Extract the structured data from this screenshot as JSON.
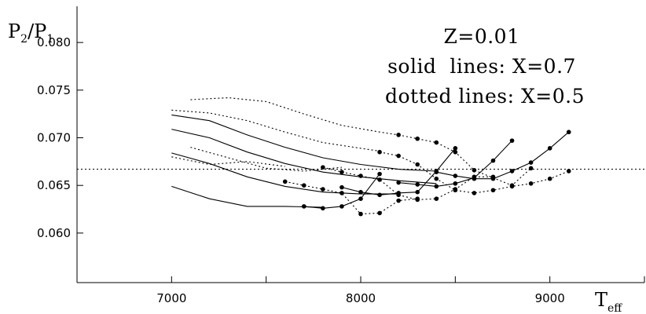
{
  "chart_data": {
    "type": "line",
    "xlabel_main": "T",
    "xlabel_sub": "eff",
    "ylabel_p2": "P",
    "ylabel_p2_sub": "2",
    "ylabel_slash": "/P",
    "ylabel_p1_sub": "1",
    "xlim": [
      6500,
      9500
    ],
    "ylim": [
      0.0548,
      0.0838
    ],
    "x_ticks": [
      7000,
      8000,
      9000
    ],
    "x_minor_ticks": [
      6500,
      7500,
      8500,
      9500
    ],
    "y_ticks": [
      0.06,
      0.065,
      0.07,
      0.075,
      0.08
    ],
    "y_tick_labels": [
      "0.060",
      "0.065",
      "0.070",
      "0.075",
      "0.080"
    ],
    "x_tick_labels": [
      "7000",
      "8000",
      "9000"
    ],
    "reference_line_y": 0.0667,
    "annotations": [
      "Z=0.01",
      "solid  lines: X=0.7",
      "dotted lines: X=0.5"
    ],
    "solid_curves": [
      [
        [
          7000,
          0.0724
        ],
        [
          7200,
          0.0718
        ],
        [
          7400,
          0.0703
        ],
        [
          7600,
          0.069
        ],
        [
          7800,
          0.0679
        ],
        [
          8000,
          0.0672
        ],
        [
          8200,
          0.0667
        ],
        [
          8400,
          0.0665
        ]
      ],
      [
        [
          7000,
          0.0709
        ],
        [
          7200,
          0.07
        ],
        [
          7400,
          0.0685
        ],
        [
          7600,
          0.0673
        ],
        [
          7800,
          0.0664
        ],
        [
          8000,
          0.0659
        ],
        [
          8200,
          0.0655
        ],
        [
          8400,
          0.0652
        ]
      ],
      [
        [
          7000,
          0.0684
        ],
        [
          7200,
          0.0673
        ],
        [
          7400,
          0.0659
        ],
        [
          7600,
          0.0649
        ],
        [
          7800,
          0.0643
        ],
        [
          8000,
          0.0641
        ],
        [
          8200,
          0.0641
        ]
      ],
      [
        [
          7000,
          0.0649
        ],
        [
          7200,
          0.0636
        ],
        [
          7400,
          0.0628
        ],
        [
          7600,
          0.0628
        ],
        [
          7800,
          0.0627
        ]
      ]
    ],
    "dotted_curves": [
      [
        [
          7100,
          0.074
        ],
        [
          7300,
          0.0742
        ],
        [
          7500,
          0.0738
        ],
        [
          7700,
          0.0725
        ],
        [
          7900,
          0.0713
        ],
        [
          8100,
          0.0706
        ],
        [
          8200,
          0.0703
        ]
      ],
      [
        [
          7000,
          0.0729
        ],
        [
          7200,
          0.0726
        ],
        [
          7400,
          0.0718
        ],
        [
          7600,
          0.0706
        ],
        [
          7800,
          0.0695
        ],
        [
          8000,
          0.0689
        ],
        [
          8100,
          0.0686
        ]
      ],
      [
        [
          7000,
          0.068
        ],
        [
          7200,
          0.0672
        ],
        [
          7400,
          0.0675
        ],
        [
          7600,
          0.067
        ]
      ],
      [
        [
          7100,
          0.069
        ],
        [
          7300,
          0.0679
        ],
        [
          7500,
          0.0668
        ],
        [
          7700,
          0.0665
        ],
        [
          7900,
          0.0669
        ]
      ]
    ],
    "solid_sequences": [
      [
        [
          7700,
          0.0628
        ],
        [
          7800,
          0.0626
        ],
        [
          7900,
          0.0628
        ],
        [
          8000,
          0.0636
        ],
        [
          8100,
          0.0662
        ]
      ],
      [
        [
          7900,
          0.0648
        ],
        [
          8000,
          0.0643
        ],
        [
          8100,
          0.064
        ],
        [
          8200,
          0.0642
        ],
        [
          8300,
          0.0643
        ],
        [
          8400,
          0.0665
        ],
        [
          8500,
          0.0689
        ]
      ],
      [
        [
          8200,
          0.0653
        ],
        [
          8300,
          0.0651
        ],
        [
          8400,
          0.0649
        ],
        [
          8500,
          0.0652
        ],
        [
          8600,
          0.0658
        ],
        [
          8700,
          0.0676
        ],
        [
          8800,
          0.0697
        ]
      ],
      [
        [
          8400,
          0.0664
        ],
        [
          8500,
          0.066
        ],
        [
          8600,
          0.0657
        ],
        [
          8700,
          0.0657
        ],
        [
          8800,
          0.0665
        ],
        [
          8900,
          0.0674
        ],
        [
          9000,
          0.0689
        ],
        [
          9100,
          0.0706
        ]
      ]
    ],
    "dotted_sequences": [
      [
        [
          7600,
          0.0654
        ],
        [
          7700,
          0.065
        ],
        [
          7800,
          0.0646
        ],
        [
          7900,
          0.0642
        ],
        [
          8000,
          0.062
        ],
        [
          8100,
          0.0621
        ],
        [
          8200,
          0.0634
        ],
        [
          8300,
          0.0636
        ]
      ],
      [
        [
          7800,
          0.0669
        ],
        [
          7900,
          0.0664
        ],
        [
          8000,
          0.066
        ],
        [
          8100,
          0.0656
        ],
        [
          8200,
          0.064
        ],
        [
          8300,
          0.0635
        ],
        [
          8400,
          0.0636
        ],
        [
          8500,
          0.0646
        ],
        [
          8600,
          0.0659
        ],
        [
          8700,
          0.0659
        ]
      ],
      [
        [
          8100,
          0.0685
        ],
        [
          8200,
          0.0681
        ],
        [
          8300,
          0.0672
        ],
        [
          8400,
          0.0657
        ],
        [
          8500,
          0.0645
        ],
        [
          8600,
          0.0642
        ],
        [
          8700,
          0.0645
        ],
        [
          8800,
          0.0649
        ],
        [
          8900,
          0.0652
        ],
        [
          9000,
          0.0657
        ],
        [
          9100,
          0.0665
        ]
      ],
      [
        [
          8200,
          0.0703
        ],
        [
          8300,
          0.0699
        ],
        [
          8400,
          0.0695
        ],
        [
          8500,
          0.0685
        ],
        [
          8600,
          0.0666
        ],
        [
          8700,
          0.0658
        ],
        [
          8800,
          0.065
        ],
        [
          8900,
          0.0668
        ]
      ]
    ]
  }
}
